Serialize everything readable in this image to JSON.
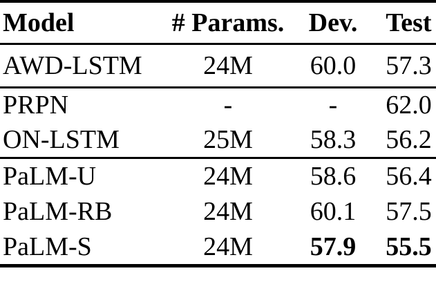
{
  "page": {
    "background_color": "#ffffff",
    "text_color": "#000000",
    "rule_color": "#000000"
  },
  "table": {
    "header": {
      "model": "Model",
      "params": "# Params.",
      "dev": "Dev.",
      "test": "Test"
    },
    "rows": [
      {
        "model": "AWD-LSTM",
        "params": "24M",
        "dev": "60.0",
        "test": "57.3",
        "section": 1,
        "emphasis": "none"
      },
      {
        "model": "PRPN",
        "params": "-",
        "dev": "-",
        "test": "62.0",
        "section": 2,
        "emphasis": "none"
      },
      {
        "model": "ON-LSTM",
        "params": "25M",
        "dev": "58.3",
        "test": "56.2",
        "section": 2,
        "emphasis": "none"
      },
      {
        "model": "PaLM-U",
        "params": "24M",
        "dev": "58.6",
        "test": "56.4",
        "section": 3,
        "emphasis": "none"
      },
      {
        "model": "PaLM-RB",
        "params": "24M",
        "dev": "60.1",
        "test": "57.5",
        "section": 3,
        "emphasis": "none"
      },
      {
        "model": "PaLM-S",
        "params": "24M",
        "dev": "57.9",
        "test": "55.5",
        "section": 3,
        "emphasis": "bold-dev-test"
      }
    ]
  }
}
